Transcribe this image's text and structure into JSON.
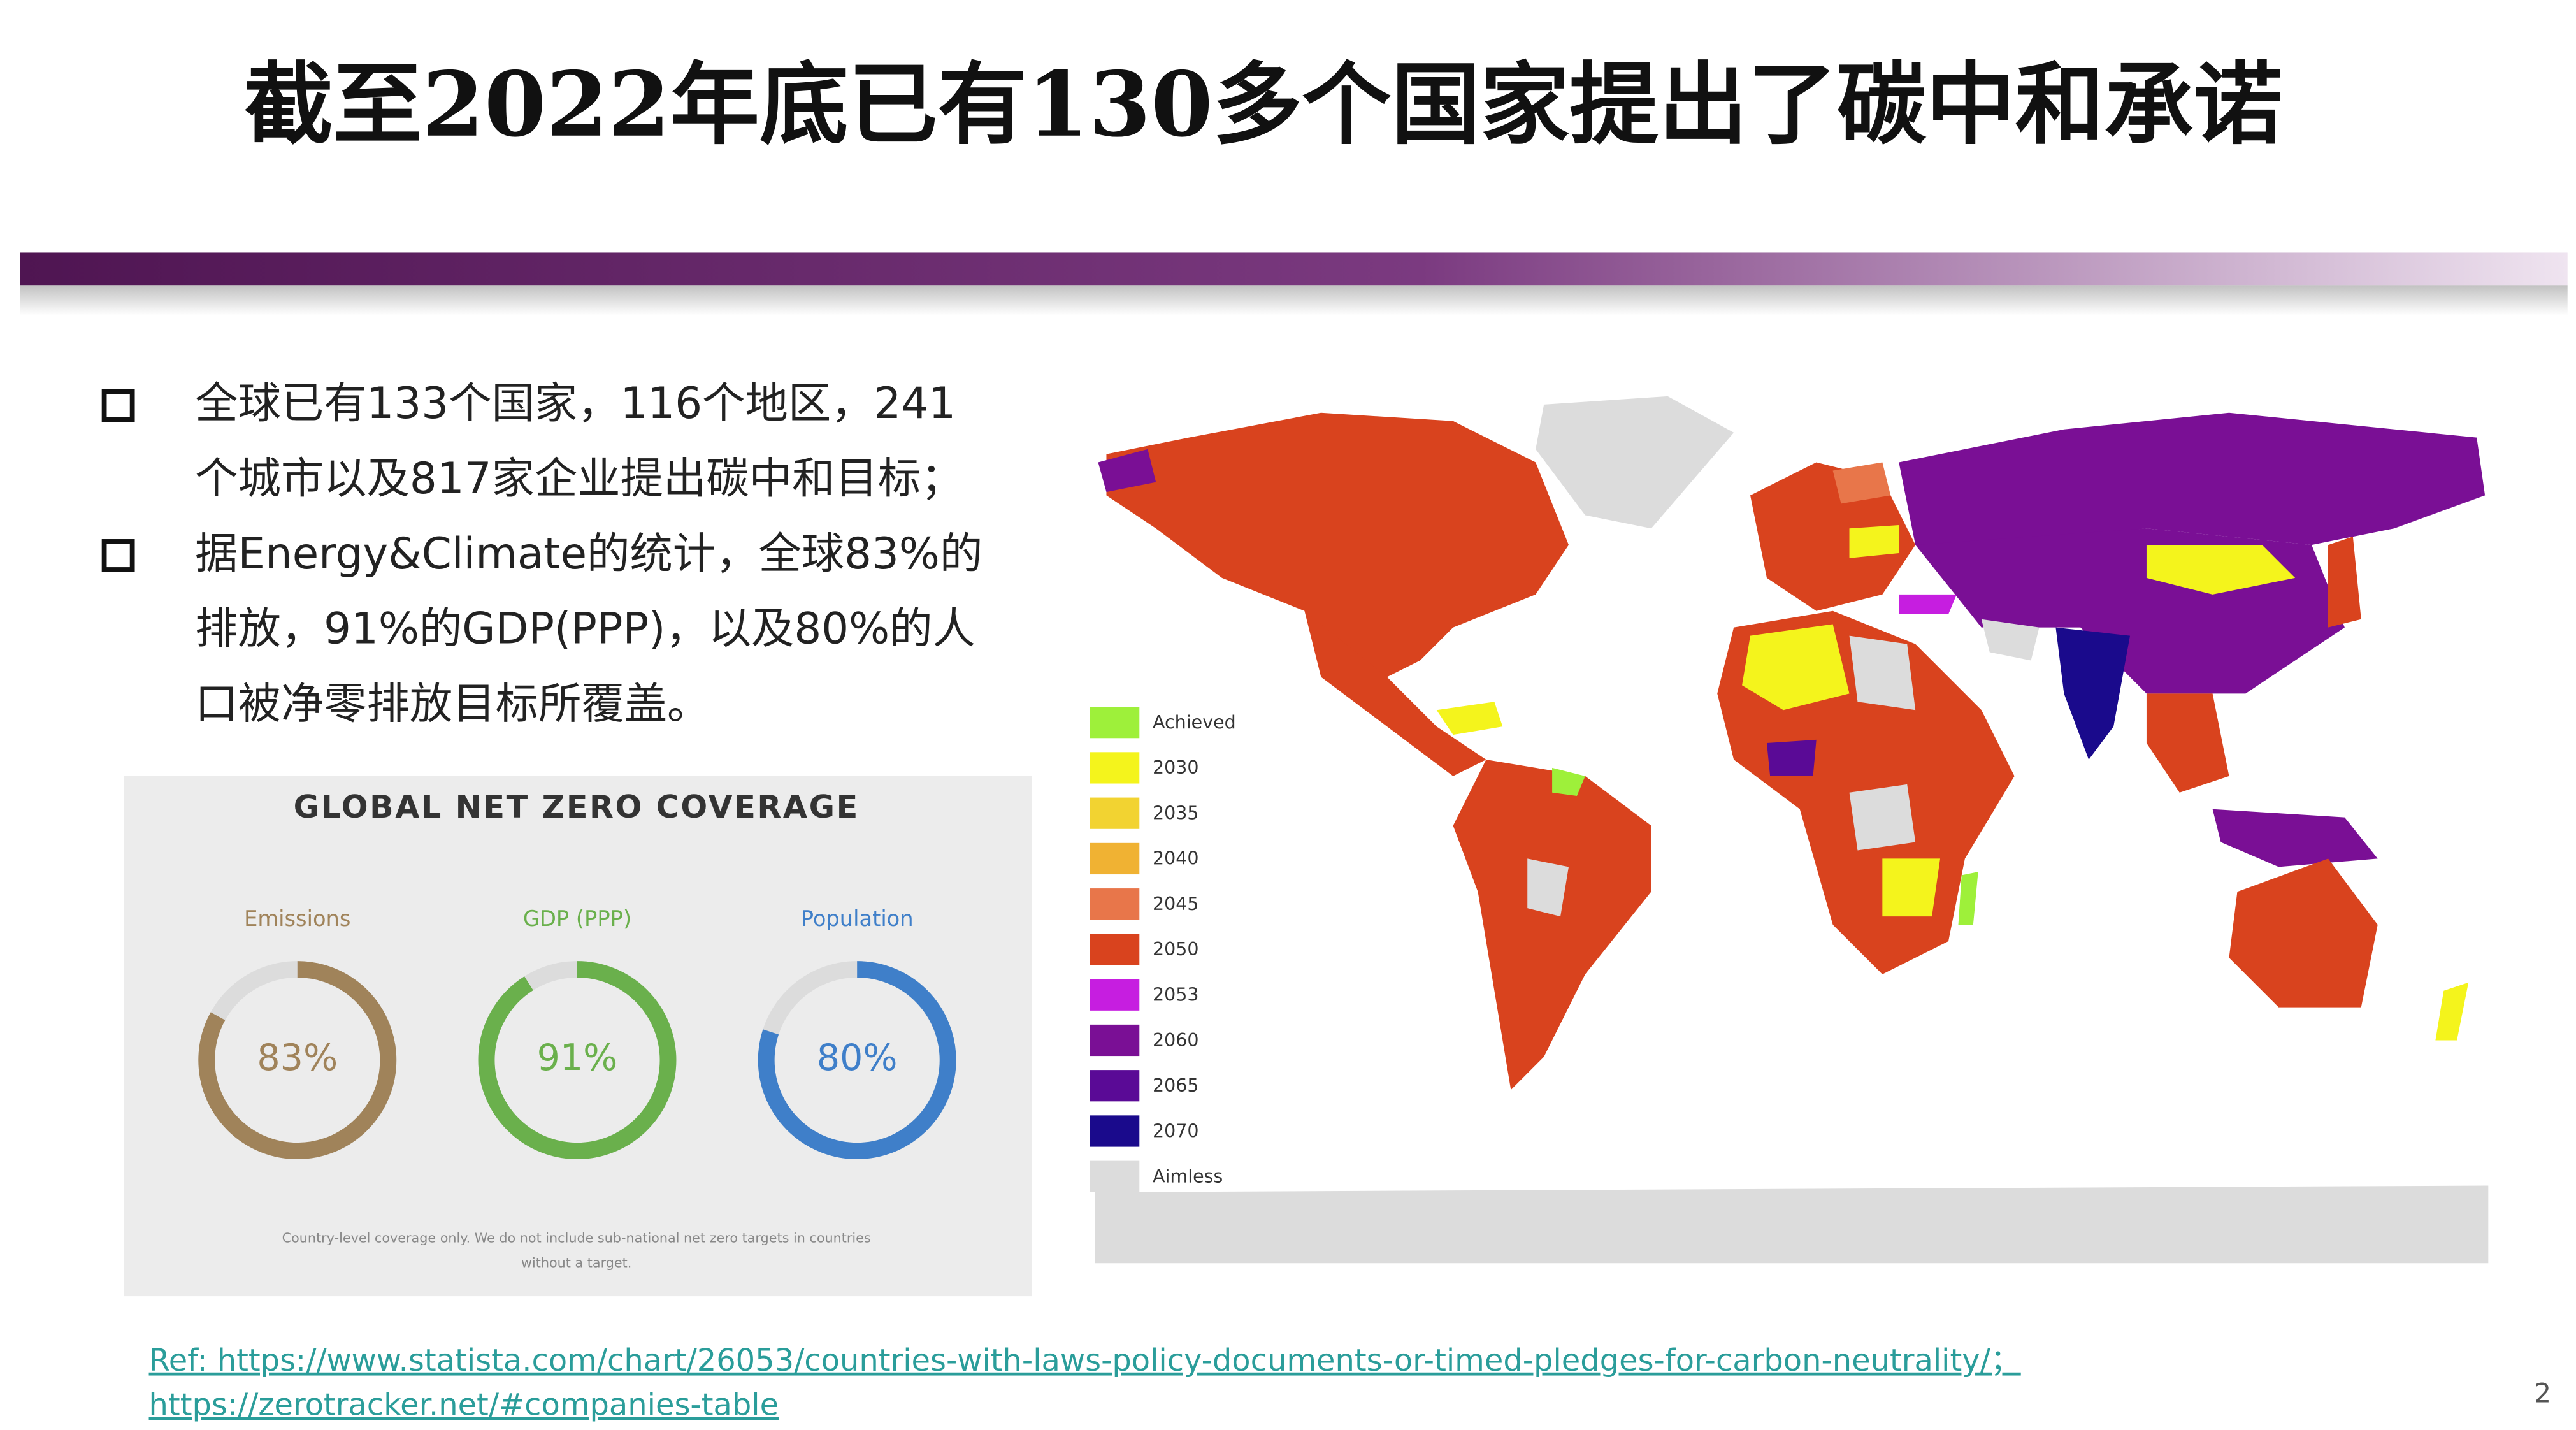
{
  "header": {
    "title": "截至2022年底已有130多个国家提出了碳中和承诺"
  },
  "bullets": [
    {
      "lines": [
        "全球已有133个国家，116个地区，241",
        "个城市以及817家企业提出碳中和目标；"
      ]
    },
    {
      "lines": [
        "据Energy&Climate的统计，全球83%的",
        "排放，91%的GDP(PPP)，以及80%的人",
        "口被净零排放目标所覆盖。"
      ]
    }
  ],
  "coverage": {
    "title": "GLOBAL NET ZERO COVERAGE",
    "items": [
      {
        "label": "Emissions",
        "value": 83,
        "value_label": "83%",
        "color": "#a0835a"
      },
      {
        "label": "GDP (PPP)",
        "value": 91,
        "value_label": "91%",
        "color": "#6ab04c"
      },
      {
        "label": "Population",
        "value": 80,
        "value_label": "80%",
        "color": "#3f7fc9"
      }
    ],
    "note": [
      "Country-level coverage only. We do not include sub-national net zero targets in countries",
      "without a target."
    ]
  },
  "map_legend": [
    {
      "label": "Achieved",
      "color": "#9ef03a"
    },
    {
      "label": "2030",
      "color": "#f4f41c"
    },
    {
      "label": "2035",
      "color": "#f2d331"
    },
    {
      "label": "2040",
      "color": "#f0b233"
    },
    {
      "label": "2045",
      "color": "#e8764a"
    },
    {
      "label": "2050",
      "color": "#d9431e"
    },
    {
      "label": "2053",
      "color": "#c61ee0"
    },
    {
      "label": "2060",
      "color": "#7a0f95"
    },
    {
      "label": "2065",
      "color": "#5a0a96"
    },
    {
      "label": "2070",
      "color": "#1a0a8c"
    },
    {
      "label": "Aimless",
      "color": "#dcdcdc"
    }
  ],
  "references": [
    "Ref: https://www.statista.com/chart/26053/countries-with-laws-policy-documents-or-timed-pledges-for-carbon-neutrality/；",
    "https://zerotracker.net/#companies-table"
  ],
  "page_number": "2"
}
